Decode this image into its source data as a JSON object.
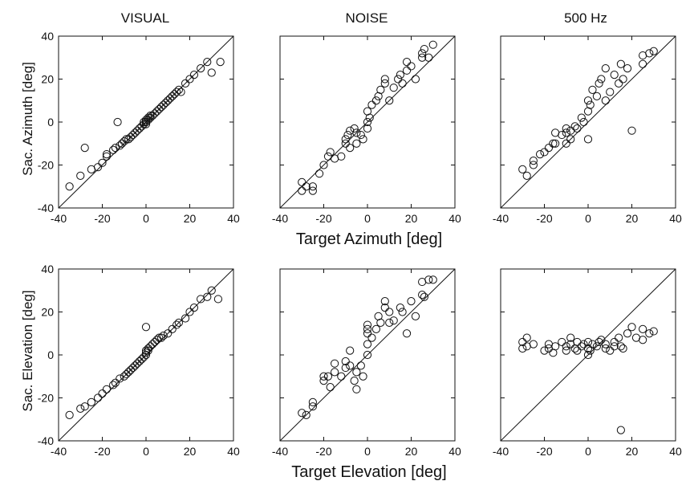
{
  "figure": {
    "column_titles": [
      "VISUAL",
      "NOISE",
      "500 Hz"
    ],
    "row_ylabels": [
      "Sac. Azimuth [deg]",
      "Sac. Elevation [deg]"
    ],
    "row_xlabels": [
      "Target Azimuth [deg]",
      "Target Elevation [deg]"
    ]
  },
  "chart_data": [
    {
      "type": "scatter",
      "title": "VISUAL",
      "xlabel": "",
      "ylabel": "Sac. Azimuth [deg]",
      "xlim": [
        -40,
        40
      ],
      "ylim": [
        -40,
        40
      ],
      "xticks": [
        -40,
        -20,
        0,
        20,
        40
      ],
      "yticks": [
        -40,
        -20,
        0,
        20,
        40
      ],
      "diagonal_line": true,
      "grid": false,
      "x": [
        -35,
        -30,
        -28,
        -25,
        -22,
        -20,
        -18,
        -18,
        -15,
        -14,
        -12,
        -11,
        -10,
        -9,
        -8,
        -7,
        -6,
        -5,
        -4,
        -3,
        -2,
        -1,
        -1,
        0,
        0,
        0,
        1,
        1,
        2,
        2,
        3,
        4,
        5,
        6,
        7,
        8,
        9,
        10,
        11,
        12,
        13,
        14,
        15,
        16,
        18,
        20,
        22,
        25,
        28,
        30,
        34,
        -13
      ],
      "y": [
        -30,
        -25,
        -12,
        -22,
        -21,
        -19,
        -15,
        -16,
        -13,
        -12,
        -11,
        -10,
        -9,
        -8,
        -8,
        -7,
        -6,
        -5,
        -4,
        -3,
        -2,
        -1,
        0,
        -1,
        0,
        1,
        1,
        2,
        2,
        3,
        3,
        4,
        5,
        6,
        7,
        8,
        9,
        10,
        11,
        12,
        13,
        14,
        15,
        14,
        18,
        20,
        22,
        25,
        28,
        23,
        28,
        0
      ]
    },
    {
      "type": "scatter",
      "title": "NOISE",
      "xlabel": "",
      "ylabel": "",
      "xlim": [
        -40,
        40
      ],
      "ylim": [
        -40,
        40
      ],
      "xticks": [
        -40,
        -20,
        0,
        20,
        40
      ],
      "yticks": [
        -40,
        -20,
        0,
        20,
        40
      ],
      "diagonal_line": true,
      "grid": false,
      "x": [
        -30,
        -28,
        -25,
        -25,
        -22,
        -20,
        -18,
        -17,
        -15,
        -12,
        -10,
        -10,
        -9,
        -8,
        -8,
        -6,
        -5,
        -5,
        -3,
        -2,
        0,
        0,
        0,
        1,
        2,
        4,
        5,
        6,
        8,
        8,
        10,
        12,
        14,
        15,
        16,
        18,
        18,
        20,
        22,
        25,
        25,
        26,
        28,
        30,
        -30
      ],
      "y": [
        -28,
        -30,
        -32,
        -30,
        -24,
        -20,
        -16,
        -14,
        -17,
        -16,
        -8,
        -10,
        -6,
        -4,
        -12,
        -3,
        -5,
        -10,
        -6,
        -8,
        -3,
        0,
        5,
        2,
        8,
        10,
        12,
        15,
        18,
        20,
        10,
        16,
        20,
        22,
        18,
        24,
        28,
        26,
        20,
        30,
        32,
        34,
        30,
        36,
        -32
      ]
    },
    {
      "type": "scatter",
      "title": "500 Hz",
      "xlabel": "Target Azimuth [deg]",
      "ylabel": "",
      "xlim": [
        -40,
        40
      ],
      "ylim": [
        -40,
        40
      ],
      "xticks": [
        -40,
        -20,
        0,
        20,
        40
      ],
      "yticks": [
        -40,
        -20,
        0,
        20,
        40
      ],
      "diagonal_line": true,
      "grid": false,
      "x": [
        -30,
        -28,
        -25,
        -25,
        -22,
        -20,
        -18,
        -16,
        -15,
        -12,
        -10,
        -10,
        -8,
        -8,
        -6,
        -5,
        -3,
        -2,
        0,
        0,
        0,
        1,
        2,
        4,
        5,
        6,
        8,
        8,
        10,
        12,
        14,
        15,
        16,
        18,
        20,
        25,
        25,
        28,
        30,
        -15,
        -10
      ],
      "y": [
        -22,
        -25,
        -18,
        -20,
        -15,
        -14,
        -12,
        -10,
        -10,
        -6,
        -10,
        -5,
        -4,
        -8,
        -2,
        -3,
        2,
        0,
        5,
        10,
        -8,
        8,
        15,
        12,
        18,
        20,
        10,
        25,
        14,
        22,
        18,
        27,
        20,
        25,
        -4,
        27,
        31,
        32,
        33,
        -5,
        -3
      ]
    },
    {
      "type": "scatter",
      "title": "",
      "xlabel": "",
      "ylabel": "Sac. Elevation [deg]",
      "xlim": [
        -40,
        40
      ],
      "ylim": [
        -40,
        40
      ],
      "xticks": [
        -40,
        -20,
        0,
        20,
        40
      ],
      "yticks": [
        -40,
        -20,
        0,
        20,
        40
      ],
      "diagonal_line": true,
      "grid": false,
      "x": [
        -35,
        -30,
        -28,
        -25,
        -22,
        -20,
        -18,
        -15,
        -14,
        -12,
        -10,
        -9,
        -8,
        -7,
        -6,
        -5,
        -4,
        -3,
        -2,
        -1,
        0,
        0,
        0,
        1,
        1,
        2,
        3,
        4,
        5,
        6,
        7,
        8,
        10,
        12,
        14,
        15,
        18,
        20,
        22,
        25,
        28,
        30,
        33,
        0
      ],
      "y": [
        -28,
        -25,
        -24,
        -22,
        -20,
        -18,
        -16,
        -14,
        -13,
        -11,
        -10,
        -9,
        -8,
        -7,
        -6,
        -5,
        -4,
        -3,
        -2,
        -1,
        0,
        1,
        2,
        2,
        3,
        4,
        5,
        6,
        7,
        8,
        8,
        9,
        10,
        12,
        14,
        15,
        17,
        20,
        22,
        26,
        27,
        30,
        26,
        13
      ]
    },
    {
      "type": "scatter",
      "title": "",
      "xlabel": "",
      "ylabel": "",
      "xlim": [
        -40,
        40
      ],
      "ylim": [
        -40,
        40
      ],
      "xticks": [
        -40,
        -20,
        0,
        20,
        40
      ],
      "yticks": [
        -40,
        -20,
        0,
        20,
        40
      ],
      "diagonal_line": true,
      "grid": false,
      "x": [
        -30,
        -28,
        -25,
        -25,
        -20,
        -18,
        -17,
        -15,
        -12,
        -10,
        -10,
        -8,
        -8,
        -6,
        -5,
        -5,
        -3,
        -2,
        0,
        0,
        0,
        0,
        0,
        2,
        4,
        5,
        6,
        8,
        8,
        10,
        10,
        12,
        15,
        16,
        18,
        20,
        22,
        25,
        25,
        26,
        28,
        30,
        -15,
        -20
      ],
      "y": [
        -27,
        -28,
        -24,
        -22,
        -12,
        -10,
        -15,
        -8,
        -10,
        -6,
        -3,
        -5,
        2,
        -12,
        -8,
        -16,
        -5,
        -10,
        0,
        5,
        10,
        12,
        14,
        8,
        12,
        18,
        15,
        22,
        25,
        20,
        15,
        16,
        22,
        20,
        10,
        25,
        18,
        28,
        34,
        27,
        35,
        35,
        -4,
        -10
      ]
    },
    {
      "type": "scatter",
      "title": "",
      "xlabel": "Target Elevation [deg]",
      "ylabel": "",
      "xlim": [
        -40,
        40
      ],
      "ylim": [
        -40,
        40
      ],
      "xticks": [
        -40,
        -20,
        0,
        20,
        40
      ],
      "yticks": [
        -40,
        -20,
        0,
        20,
        40
      ],
      "diagonal_line": true,
      "grid": false,
      "x": [
        -30,
        -30,
        -28,
        -28,
        -25,
        -20,
        -18,
        -18,
        -16,
        -15,
        -12,
        -10,
        -10,
        -8,
        -8,
        -6,
        -5,
        -5,
        -3,
        -2,
        0,
        0,
        0,
        1,
        2,
        4,
        5,
        6,
        8,
        8,
        10,
        12,
        12,
        14,
        15,
        16,
        18,
        20,
        22,
        25,
        25,
        28,
        30,
        15
      ],
      "y": [
        6,
        3,
        8,
        4,
        5,
        2,
        5,
        3,
        1,
        4,
        6,
        2,
        4,
        8,
        5,
        3,
        6,
        2,
        4,
        5,
        6,
        0,
        3,
        2,
        5,
        4,
        6,
        7,
        3,
        5,
        2,
        4,
        6,
        8,
        4,
        3,
        10,
        13,
        8,
        12,
        7,
        10,
        11,
        -35
      ]
    }
  ]
}
